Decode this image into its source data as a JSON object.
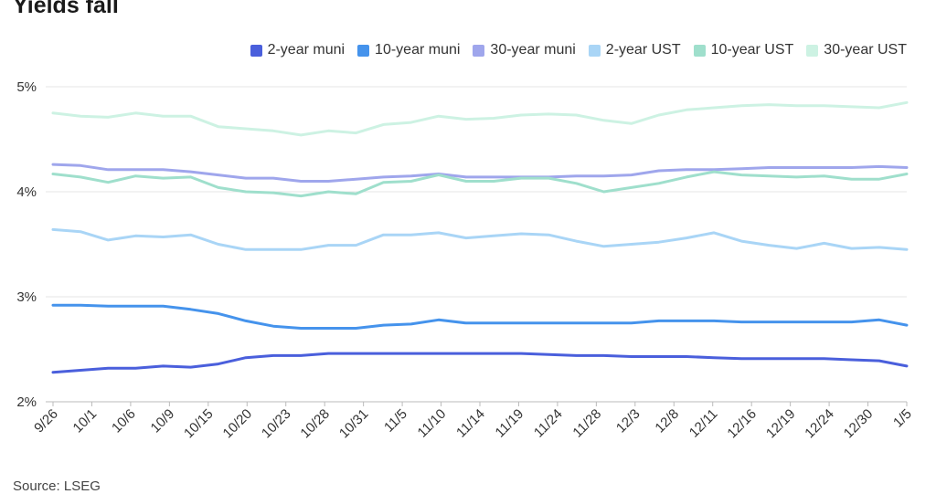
{
  "title": "Yields fall",
  "source": "Source: LSEG",
  "chart_data": {
    "type": "line",
    "ylim": [
      2,
      5
    ],
    "yticks": [
      {
        "value": 2,
        "label": "2%"
      },
      {
        "value": 3,
        "label": "3%"
      },
      {
        "value": 4,
        "label": "4%"
      },
      {
        "value": 5,
        "label": "5%"
      }
    ],
    "grid": true,
    "legend_position": "top-right",
    "x_tick_labels": [
      "9/26",
      "10/1",
      "10/6",
      "10/9",
      "10/15",
      "10/20",
      "10/23",
      "10/28",
      "10/31",
      "11/5",
      "11/10",
      "11/14",
      "11/19",
      "11/24",
      "11/28",
      "12/3",
      "12/8",
      "12/11",
      "12/16",
      "12/19",
      "12/24",
      "12/30",
      "1/5"
    ],
    "series": [
      {
        "name": "2-year muni",
        "color": "#4a5fdc",
        "values": [
          2.28,
          2.3,
          2.32,
          2.32,
          2.34,
          2.33,
          2.36,
          2.42,
          2.44,
          2.44,
          2.46,
          2.46,
          2.46,
          2.46,
          2.46,
          2.46,
          2.46,
          2.46,
          2.45,
          2.44,
          2.44,
          2.43,
          2.43,
          2.43,
          2.42,
          2.41,
          2.41,
          2.41,
          2.41,
          2.4,
          2.39,
          2.34
        ]
      },
      {
        "name": "10-year muni",
        "color": "#4593ec",
        "values": [
          2.92,
          2.92,
          2.91,
          2.91,
          2.91,
          2.88,
          2.84,
          2.77,
          2.72,
          2.7,
          2.7,
          2.7,
          2.73,
          2.74,
          2.78,
          2.75,
          2.75,
          2.75,
          2.75,
          2.75,
          2.75,
          2.75,
          2.77,
          2.77,
          2.77,
          2.76,
          2.76,
          2.76,
          2.76,
          2.76,
          2.78,
          2.73
        ]
      },
      {
        "name": "30-year muni",
        "color": "#9fa6ec",
        "values": [
          4.26,
          4.25,
          4.21,
          4.21,
          4.21,
          4.19,
          4.16,
          4.13,
          4.13,
          4.1,
          4.1,
          4.12,
          4.14,
          4.15,
          4.17,
          4.14,
          4.14,
          4.14,
          4.14,
          4.15,
          4.15,
          4.16,
          4.2,
          4.21,
          4.21,
          4.22,
          4.23,
          4.23,
          4.23,
          4.23,
          4.24,
          4.23
        ]
      },
      {
        "name": "2-year UST",
        "color": "#a9d5f6",
        "values": [
          3.64,
          3.62,
          3.54,
          3.58,
          3.57,
          3.59,
          3.5,
          3.45,
          3.45,
          3.45,
          3.49,
          3.49,
          3.59,
          3.59,
          3.61,
          3.56,
          3.58,
          3.6,
          3.59,
          3.53,
          3.48,
          3.5,
          3.52,
          3.56,
          3.61,
          3.53,
          3.49,
          3.46,
          3.51,
          3.46,
          3.47,
          3.45
        ]
      },
      {
        "name": "10-year UST",
        "color": "#9fdfcc",
        "values": [
          4.17,
          4.14,
          4.09,
          4.15,
          4.13,
          4.14,
          4.04,
          4.0,
          3.99,
          3.96,
          4.0,
          3.98,
          4.09,
          4.1,
          4.16,
          4.1,
          4.1,
          4.13,
          4.13,
          4.08,
          4.0,
          4.04,
          4.08,
          4.14,
          4.19,
          4.16,
          4.15,
          4.14,
          4.15,
          4.12,
          4.12,
          4.17
        ]
      },
      {
        "name": "30-year UST",
        "color": "#cdf2e3",
        "values": [
          4.75,
          4.72,
          4.71,
          4.75,
          4.72,
          4.72,
          4.62,
          4.6,
          4.58,
          4.54,
          4.58,
          4.56,
          4.64,
          4.66,
          4.72,
          4.69,
          4.7,
          4.73,
          4.74,
          4.73,
          4.68,
          4.65,
          4.73,
          4.78,
          4.8,
          4.82,
          4.83,
          4.82,
          4.82,
          4.81,
          4.8,
          4.85
        ]
      }
    ]
  }
}
